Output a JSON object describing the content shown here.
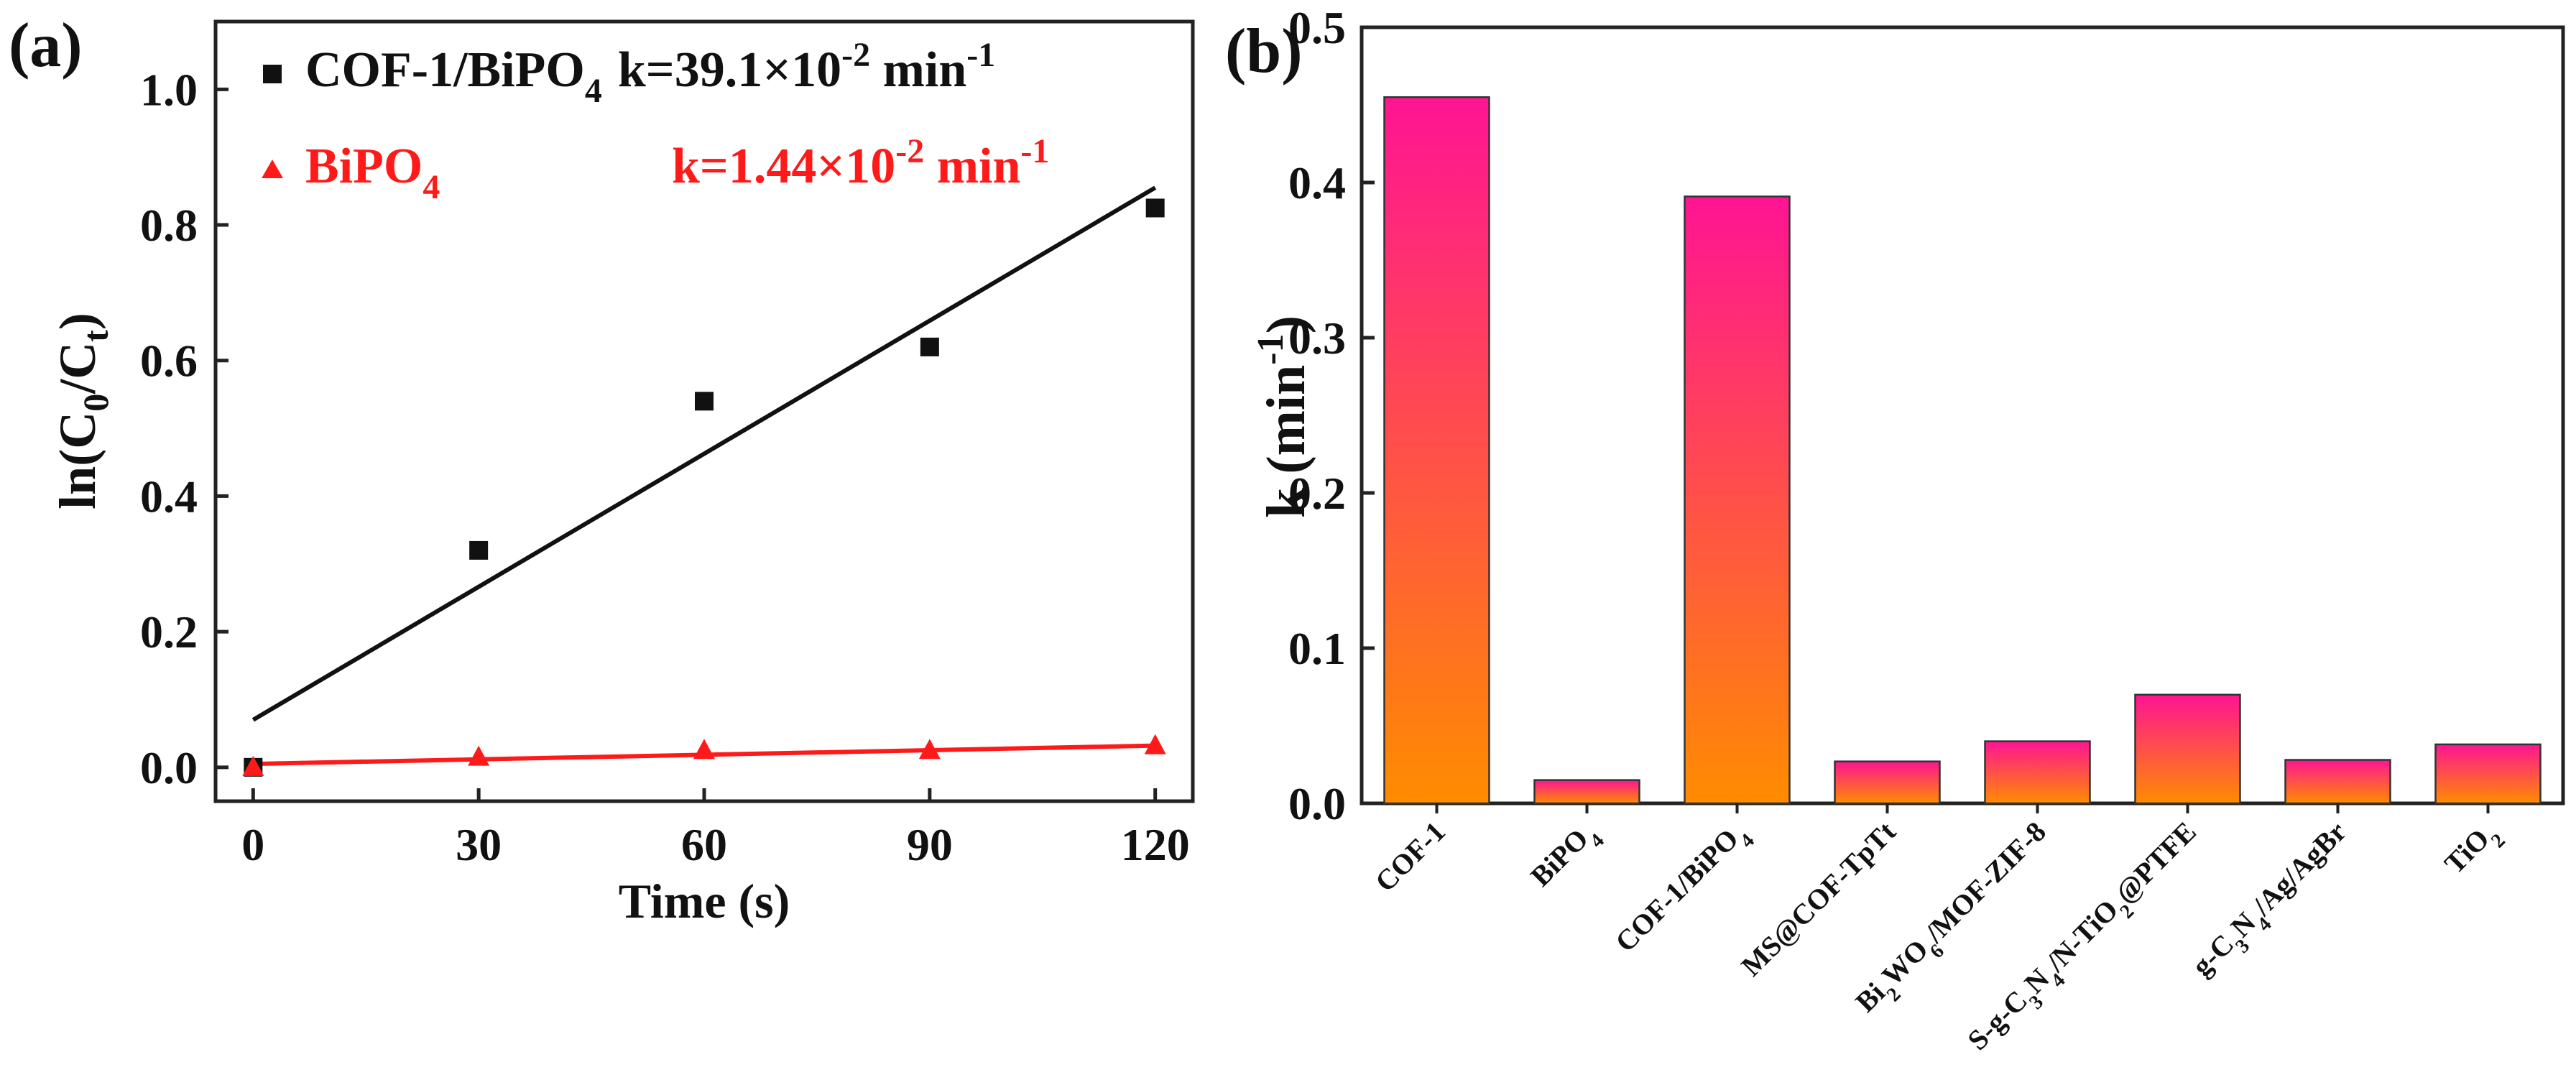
{
  "colors": {
    "black": "#111111",
    "red": "#ff1a1a",
    "bar_top": "#ff1493",
    "bar_bottom": "#ff8c00",
    "bar_stroke": "#333333",
    "axis": "#222222"
  },
  "chart_data": [
    {
      "type": "scatter",
      "panel_label": "(a)",
      "xlabel": "Time (s)",
      "ylabel": {
        "base": "ln(C",
        "sub1": "0",
        "mid": "/C",
        "sub2": "t",
        "end": ")"
      },
      "xlim": [
        -5,
        125
      ],
      "ylim": [
        -0.05,
        1.1
      ],
      "xticks": [
        0,
        30,
        60,
        90,
        120
      ],
      "xtick_labels": [
        "0",
        "30",
        "60",
        "90",
        "120"
      ],
      "yticks": [
        0.0,
        0.2,
        0.4,
        0.6,
        0.8,
        1.0
      ],
      "ytick_labels": [
        "0.0",
        "0.2",
        "0.4",
        "0.6",
        "0.8",
        "1.0"
      ],
      "series": [
        {
          "name": "COF-1/BiPO4",
          "marker": "square",
          "color": "#111111",
          "x": [
            0,
            30,
            60,
            90,
            120
          ],
          "y": [
            0.0,
            0.32,
            0.54,
            0.62,
            0.825
          ],
          "fit": {
            "x": [
              0,
              120
            ],
            "y": [
              0.07,
              0.855
            ]
          }
        },
        {
          "name": "BiPO4",
          "marker": "triangle",
          "color": "#ff1a1a",
          "x": [
            0,
            30,
            60,
            90,
            120
          ],
          "y": [
            0.0,
            0.015,
            0.025,
            0.025,
            0.032
          ],
          "fit": {
            "x": [
              0,
              120
            ],
            "y": [
              0.005,
              0.032
            ]
          }
        }
      ],
      "legend": [
        {
          "name_base": "COF-1/BiPO",
          "name_sub": "4",
          "rate_base": "k=39.1×10",
          "rate_sup": "-2",
          "rate_unit": " min",
          "rate_unit_sup": "-1",
          "color": "#111111"
        },
        {
          "name_base": "BiPO",
          "name_sub": "4",
          "rate_base": "k=1.44×10",
          "rate_sup": "-2",
          "rate_unit": " min",
          "rate_unit_sup": "-1",
          "color": "#ff1a1a"
        }
      ],
      "legend_position": "top-left"
    },
    {
      "type": "bar",
      "panel_label": "(b)",
      "ylabel": {
        "base": "k (min",
        "sup": "-1",
        "end": ")"
      },
      "ylim": [
        0,
        0.5
      ],
      "yticks": [
        0.0,
        0.1,
        0.2,
        0.3,
        0.4,
        0.5
      ],
      "ytick_labels": [
        "0.0",
        "0.1",
        "0.2",
        "0.3",
        "0.4",
        "0.5"
      ],
      "categories": [
        "COF-1",
        "BiPO4",
        "COF-1/BiPO4",
        "MS@COF-TpTt",
        "Bi2WO6/MOF-ZIF-8",
        "S-g-C3N4/N-TiO2@PTFE",
        "g-C3N4/Ag/AgBr",
        "TiO2"
      ],
      "category_labels": [
        [
          {
            "t": "COF-1"
          }
        ],
        [
          {
            "t": "BiPO"
          },
          {
            "t": "4",
            "sub": true
          }
        ],
        [
          {
            "t": "COF-1/BiPO"
          },
          {
            "t": "4",
            "sub": true
          }
        ],
        [
          {
            "t": "MS@COF-TpTt"
          }
        ],
        [
          {
            "t": "Bi"
          },
          {
            "t": "2",
            "sub": true
          },
          {
            "t": "WO"
          },
          {
            "t": "6",
            "sub": true
          },
          {
            "t": "/MOF-ZIF-8"
          }
        ],
        [
          {
            "t": "S-g-C"
          },
          {
            "t": "3",
            "sub": true
          },
          {
            "t": "N"
          },
          {
            "t": "4",
            "sub": true
          },
          {
            "t": "/N-TiO"
          },
          {
            "t": "2",
            "sub": true
          },
          {
            "t": "@PTFE"
          }
        ],
        [
          {
            "t": "g-C"
          },
          {
            "t": "3",
            "sub": true
          },
          {
            "t": "N"
          },
          {
            "t": "4",
            "sub": true
          },
          {
            "t": "/Ag/AgBr"
          }
        ],
        [
          {
            "t": "TiO"
          },
          {
            "t": "2",
            "sub": true
          }
        ]
      ],
      "values": [
        0.455,
        0.015,
        0.391,
        0.027,
        0.04,
        0.07,
        0.028,
        0.038
      ]
    }
  ]
}
